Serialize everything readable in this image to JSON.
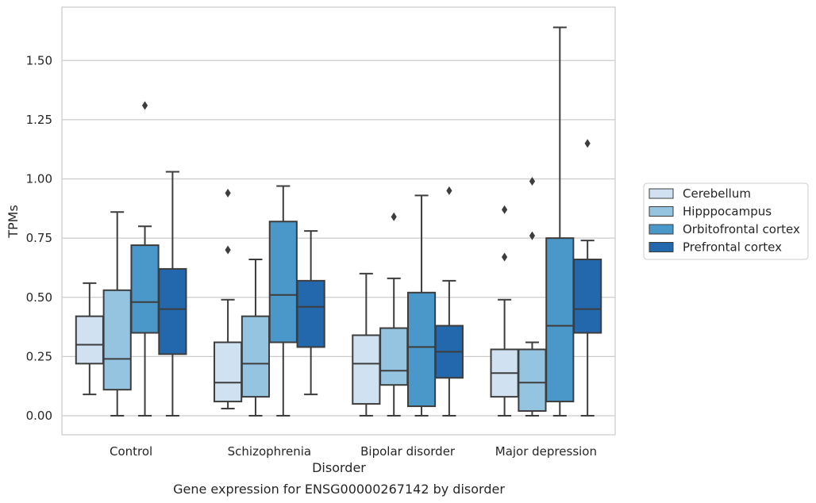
{
  "chart_data": {
    "type": "box",
    "xlabel": "Disorder",
    "ylabel": "TPMs",
    "caption": "Gene expression for ENSG00000267142 by disorder",
    "categories": [
      "Control",
      "Schizophrenia",
      "Bipolar disorder",
      "Major depression"
    ],
    "ylim": [
      -0.08,
      1.7
    ],
    "yticks": [
      "0.00",
      "0.25",
      "0.50",
      "0.75",
      "1.00",
      "1.25",
      "1.50"
    ],
    "grid": "horizontal",
    "legend_position": "right",
    "series": [
      {
        "name": "Cerebellum",
        "color": "#d0e1f2",
        "boxes": [
          {
            "min": 0.09,
            "q1": 0.22,
            "median": 0.3,
            "q3": 0.42,
            "max": 0.56,
            "outliers": []
          },
          {
            "min": 0.03,
            "q1": 0.06,
            "median": 0.14,
            "q3": 0.31,
            "max": 0.49,
            "outliers": [
              0.7,
              0.94
            ]
          },
          {
            "min": 0.0,
            "q1": 0.05,
            "median": 0.22,
            "q3": 0.34,
            "max": 0.6,
            "outliers": []
          },
          {
            "min": 0.0,
            "q1": 0.08,
            "median": 0.18,
            "q3": 0.28,
            "max": 0.49,
            "outliers": [
              0.67,
              0.87
            ]
          }
        ]
      },
      {
        "name": "Hipppocampus",
        "color": "#94c4df",
        "boxes": [
          {
            "min": 0.0,
            "q1": 0.11,
            "median": 0.24,
            "q3": 0.53,
            "max": 0.86,
            "outliers": []
          },
          {
            "min": 0.0,
            "q1": 0.08,
            "median": 0.22,
            "q3": 0.42,
            "max": 0.66,
            "outliers": []
          },
          {
            "min": 0.0,
            "q1": 0.13,
            "median": 0.19,
            "q3": 0.37,
            "max": 0.58,
            "outliers": [
              0.84
            ]
          },
          {
            "min": 0.0,
            "q1": 0.02,
            "median": 0.14,
            "q3": 0.28,
            "max": 0.31,
            "outliers": [
              0.76,
              0.99
            ]
          }
        ]
      },
      {
        "name": "Orbitofrontal cortex",
        "color": "#4a98c9",
        "boxes": [
          {
            "min": 0.0,
            "q1": 0.35,
            "median": 0.48,
            "q3": 0.72,
            "max": 0.8,
            "outliers": [
              1.31
            ]
          },
          {
            "min": 0.0,
            "q1": 0.31,
            "median": 0.51,
            "q3": 0.82,
            "max": 0.97,
            "outliers": []
          },
          {
            "min": 0.0,
            "q1": 0.04,
            "median": 0.29,
            "q3": 0.52,
            "max": 0.93,
            "outliers": []
          },
          {
            "min": 0.0,
            "q1": 0.06,
            "median": 0.38,
            "q3": 0.75,
            "max": 1.64,
            "outliers": []
          }
        ]
      },
      {
        "name": "Prefrontal cortex",
        "color": "#2367ac",
        "boxes": [
          {
            "min": 0.0,
            "q1": 0.26,
            "median": 0.45,
            "q3": 0.62,
            "max": 1.03,
            "outliers": []
          },
          {
            "min": 0.09,
            "q1": 0.29,
            "median": 0.46,
            "q3": 0.57,
            "max": 0.78,
            "outliers": []
          },
          {
            "min": 0.0,
            "q1": 0.16,
            "median": 0.27,
            "q3": 0.38,
            "max": 0.57,
            "outliers": [
              0.95
            ]
          },
          {
            "min": 0.0,
            "q1": 0.35,
            "median": 0.45,
            "q3": 0.66,
            "max": 0.74,
            "outliers": [
              1.15
            ]
          }
        ]
      }
    ]
  }
}
